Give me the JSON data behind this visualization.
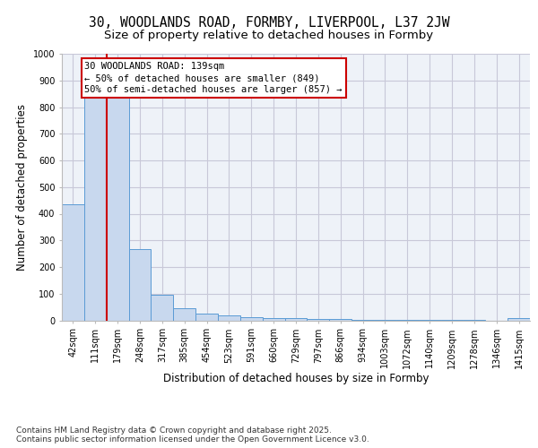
{
  "title_line1": "30, WOODLANDS ROAD, FORMBY, LIVERPOOL, L37 2JW",
  "title_line2": "Size of property relative to detached houses in Formby",
  "xlabel": "Distribution of detached houses by size in Formby",
  "ylabel": "Number of detached properties",
  "bar_labels": [
    "42sqm",
    "111sqm",
    "179sqm",
    "248sqm",
    "317sqm",
    "385sqm",
    "454sqm",
    "523sqm",
    "591sqm",
    "660sqm",
    "729sqm",
    "797sqm",
    "866sqm",
    "934sqm",
    "1003sqm",
    "1072sqm",
    "1140sqm",
    "1209sqm",
    "1278sqm",
    "1346sqm",
    "1415sqm"
  ],
  "bar_values": [
    435,
    849,
    849,
    268,
    96,
    46,
    25,
    17,
    13,
    8,
    7,
    5,
    4,
    3,
    3,
    2,
    2,
    1,
    1,
    0,
    8
  ],
  "bar_color": "#c8d8ee",
  "bar_edge_color": "#5b9bd5",
  "grid_color": "#c8c8d8",
  "background_color": "#eef2f8",
  "annotation_text": "30 WOODLANDS ROAD: 139sqm\n← 50% of detached houses are smaller (849)\n50% of semi-detached houses are larger (857) →",
  "annotation_box_color": "#ffffff",
  "annotation_box_edge": "#cc0000",
  "vline_color": "#cc0000",
  "ylim": [
    0,
    1000
  ],
  "yticks": [
    0,
    100,
    200,
    300,
    400,
    500,
    600,
    700,
    800,
    900,
    1000
  ],
  "footnote": "Contains HM Land Registry data © Crown copyright and database right 2025.\nContains public sector information licensed under the Open Government Licence v3.0.",
  "title_fontsize": 10.5,
  "subtitle_fontsize": 9.5,
  "axis_label_fontsize": 8.5,
  "tick_fontsize": 7,
  "annotation_fontsize": 7.5,
  "footnote_fontsize": 6.5
}
